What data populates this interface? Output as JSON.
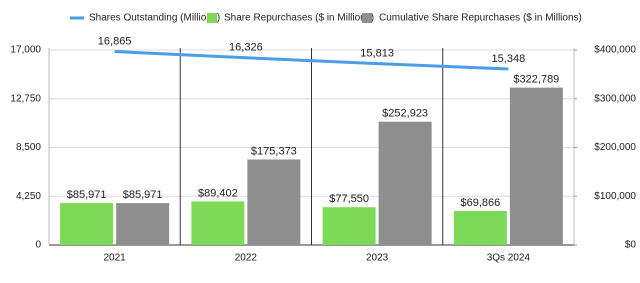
{
  "chart_data": {
    "type": "combo",
    "categories": [
      "2021",
      "2022",
      "2023",
      "3Qs 2024"
    ],
    "series": [
      {
        "name": "Shares Outstanding (Millions)",
        "type": "line",
        "color": "#4a9ee8",
        "axis": "y",
        "values": [
          16865,
          16326,
          15813,
          15348
        ],
        "value_labels": [
          "16,865",
          "16,326",
          "15,813",
          "15,348"
        ]
      },
      {
        "name": "Share Repurchases ($ in Millions)",
        "type": "bar",
        "color": "#7ed957",
        "axis": "y2",
        "values": [
          85971,
          89402,
          77550,
          69866
        ],
        "value_labels": [
          "$85,971",
          "$89,402",
          "$77,550",
          "$69,866"
        ]
      },
      {
        "name": "Cumulative Share Repurchases ($ in Millions)",
        "type": "bar",
        "color": "#8e8e8e",
        "axis": "y2",
        "values": [
          85971,
          175373,
          252923,
          322789
        ],
        "value_labels": [
          "$85,971",
          "$175,373",
          "$252,923",
          "$322,789"
        ]
      }
    ],
    "ylim": [
      0,
      17000
    ],
    "yticks": [
      0,
      {
        "value": 4250,
        "label": "4,250"
      },
      {
        "value": 8500,
        "label": "8,500"
      },
      {
        "value": 12750,
        "label": "12,750"
      },
      {
        "value": 17000,
        "label": "17,000"
      }
    ],
    "y2lim": [
      0,
      400000
    ],
    "y2ticks": [
      {
        "value": 0,
        "label": "$0"
      },
      {
        "value": 100000,
        "label": "$100,000"
      },
      {
        "value": 200000,
        "label": "$200,000"
      },
      {
        "value": 300000,
        "label": "$300,000"
      },
      {
        "value": 400000,
        "label": "$400,000"
      }
    ],
    "grid": true,
    "legend": "top"
  }
}
